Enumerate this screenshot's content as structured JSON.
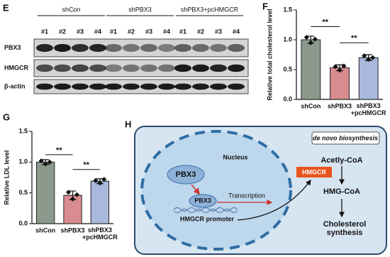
{
  "panel_labels": [
    "E",
    "F",
    "G",
    "H"
  ],
  "blot": {
    "groups": [
      "shCon",
      "shPBX3",
      "shPBX3+pcHMGCR"
    ],
    "lanes": [
      "#1",
      "#2",
      "#3",
      "#4",
      "#1",
      "#2",
      "#3",
      "#4",
      "#1",
      "#2",
      "#3",
      "#4"
    ],
    "rows": [
      "PBX3",
      "HMGCR",
      "β-actin"
    ]
  },
  "chart_data": [
    {
      "type": "bar",
      "ylabel": "Relative total cholesterol level",
      "categories": [
        "shCon",
        "shPBX3",
        "shPBX3\n+pcHMGCR"
      ],
      "values": [
        1.0,
        0.53,
        0.7
      ],
      "errors": [
        0.06,
        0.05,
        0.05
      ],
      "points": [
        [
          1.04,
          0.95,
          1.01
        ],
        [
          0.55,
          0.49,
          0.56
        ],
        [
          0.73,
          0.67,
          0.7
        ]
      ],
      "colors": [
        "#8c9a8e",
        "#d98c90",
        "#a9b9dd"
      ],
      "ylim": [
        0,
        1.5
      ],
      "yticks": [
        {
          "value": 0,
          "label": "0.0"
        },
        0.5,
        {
          "value": 1,
          "label": "1.0"
        },
        1.5
      ],
      "annotations": [
        "**",
        "**"
      ]
    },
    {
      "type": "bar",
      "ylabel": "Relative LDL level",
      "categories": [
        "shCon",
        "shPBX3",
        "shPBX3\n+pcHMGCR"
      ],
      "values": [
        1.0,
        0.46,
        0.69
      ],
      "errors": [
        0.04,
        0.07,
        0.04
      ],
      "points": [
        [
          1.02,
          0.97,
          1.0
        ],
        [
          0.51,
          0.4,
          0.47
        ],
        [
          0.7,
          0.66,
          0.72
        ]
      ],
      "colors": [
        "#8c9a8e",
        "#d98c90",
        "#a9b9dd"
      ],
      "ylim": [
        0,
        1.5
      ],
      "yticks": [
        {
          "value": 0,
          "label": "0.0"
        },
        0.5,
        {
          "value": 1,
          "label": "1.0"
        },
        1.5
      ],
      "annotations": [
        "**",
        "**"
      ]
    }
  ],
  "diagram": {
    "title": "de novo biosynthesis",
    "nucleus": "Nucleus",
    "tf_large": "PBX3",
    "tf_small": "PBX3",
    "transcription": "Transcription",
    "promoter": "HMGCR promoter",
    "enzyme": "HMGCR",
    "substrate": "Acetly-CoA",
    "intermediate": "HMG-CoA",
    "product": "Cholesterol\nsynthesis"
  }
}
